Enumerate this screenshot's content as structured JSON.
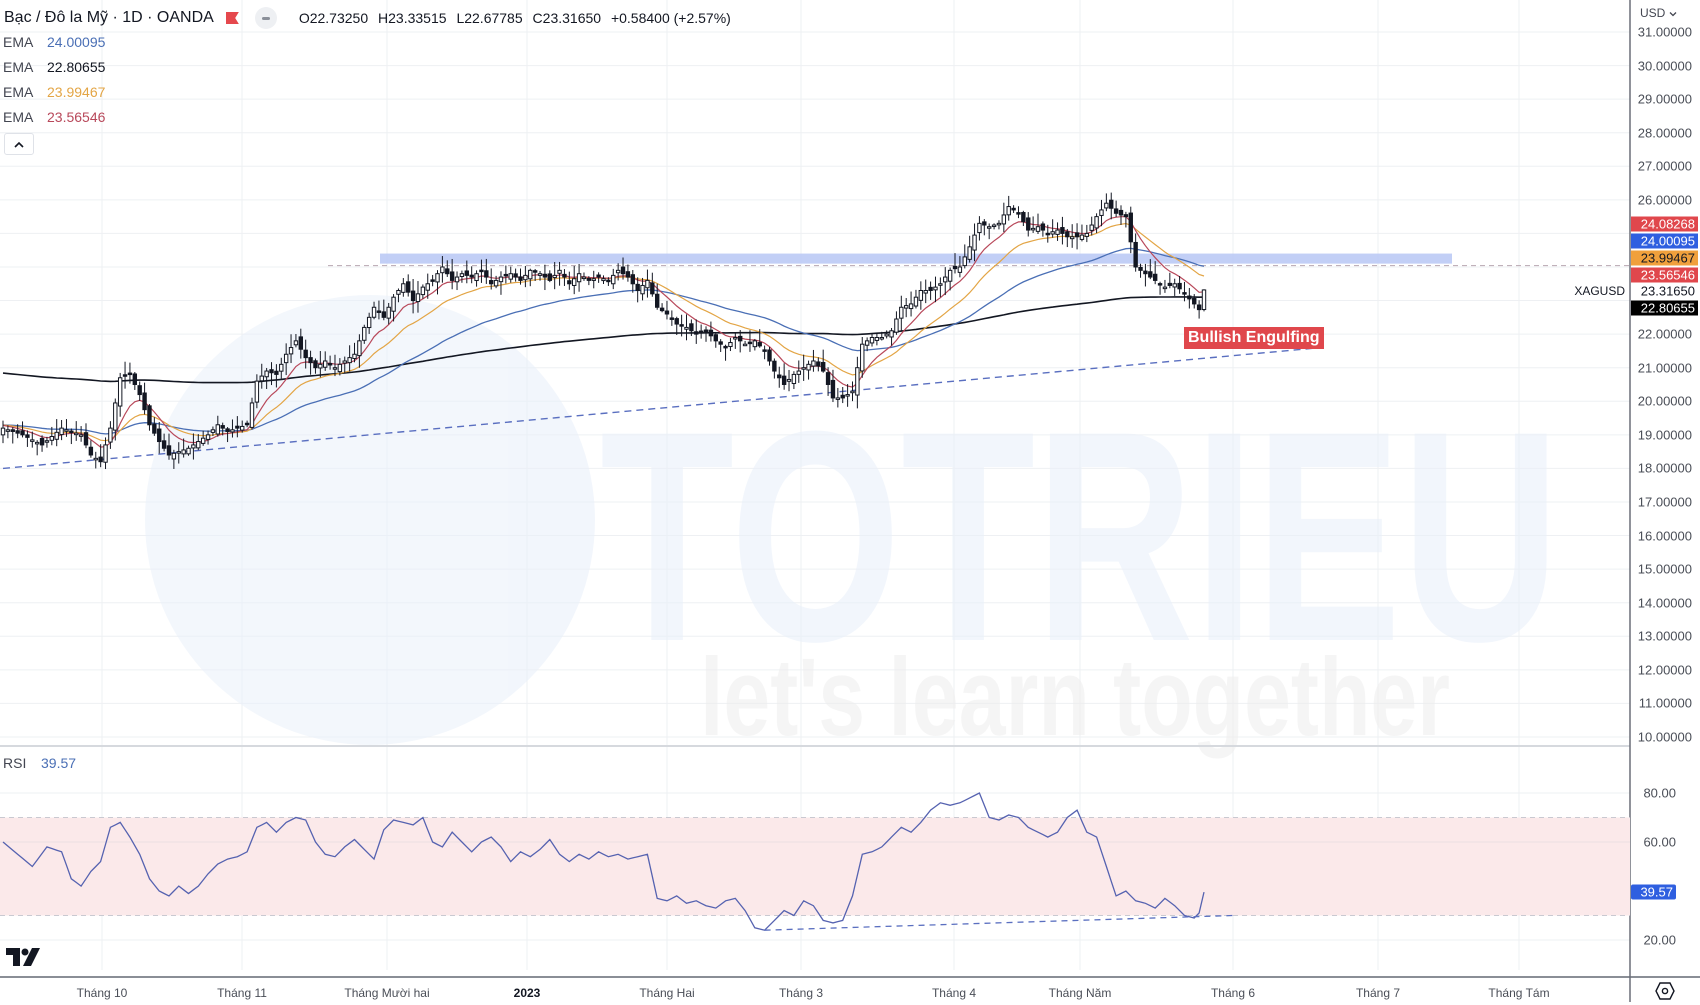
{
  "header": {
    "title": "Bạc / Đô la Mỹ · 1D · OANDA",
    "ohlc": {
      "open_key": "O",
      "open": "22.73250",
      "high_key": "H",
      "high": "23.33515",
      "low_key": "L",
      "low": "22.67785",
      "close_key": "C",
      "close": "23.31650",
      "change": "+0.58400 (+2.57%)"
    }
  },
  "indicators": {
    "emas": [
      {
        "label": "EMA",
        "value": "24.00095",
        "color": "#4a6fb5"
      },
      {
        "label": "EMA",
        "value": "22.80655",
        "color": "#131722"
      },
      {
        "label": "EMA",
        "value": "23.99467",
        "color": "#e3a545"
      },
      {
        "label": "EMA",
        "value": "23.56546",
        "color": "#b8485a"
      }
    ],
    "rsi": {
      "label": "RSI",
      "value": "39.57",
      "color": "#4a6fb5"
    }
  },
  "price_axis": {
    "currency": "USD",
    "symbol": "XAGUSD",
    "ticks": [
      "31.00000",
      "30.00000",
      "29.00000",
      "28.00000",
      "27.00000",
      "26.00000",
      "22.00000",
      "21.00000",
      "20.00000",
      "19.00000",
      "18.00000",
      "17.00000",
      "16.00000",
      "15.00000",
      "14.00000",
      "13.00000",
      "12.00000",
      "11.00000",
      "10.00000"
    ],
    "tags": [
      {
        "value": "24.08268",
        "bg": "#e0474c",
        "fg": "#ffffff"
      },
      {
        "value": "24.00095",
        "bg": "#2f5fe0",
        "fg": "#ffffff"
      },
      {
        "value": "23.99467",
        "bg": "#f0a03c",
        "fg": "#131722"
      },
      {
        "value": "23.56546",
        "bg": "#e0474c",
        "fg": "#ffffff"
      },
      {
        "value": "23.31650",
        "bg": "transparent",
        "fg": "#131722"
      },
      {
        "value": "22.80655",
        "bg": "#000000",
        "fg": "#ffffff"
      }
    ],
    "rsi_ticks": [
      "80.00",
      "60.00",
      "20.00"
    ],
    "rsi_tag": {
      "value": "39.57",
      "bg": "#2f5fe0",
      "fg": "#ffffff"
    }
  },
  "time_axis": {
    "labels": [
      "Tháng 10",
      "Tháng 11",
      "Tháng Mười hai",
      "2023",
      "Tháng Hai",
      "Tháng 3",
      "Tháng 4",
      "Tháng Năm",
      "Tháng 6",
      "Tháng 7",
      "Tháng Tám"
    ],
    "bold_label": "2023"
  },
  "annotations": {
    "pattern_label": "Bullish Engulfing",
    "watermark_main": "TOTRIEU",
    "watermark_sub": "let's learn together"
  },
  "chart_data": [
    {
      "type": "candlestick",
      "title": "Bạc / Đô la Mỹ · 1D · OANDA (XAGUSD)",
      "xlabel": "",
      "ylabel": "USD",
      "ylim": [
        10,
        31
      ],
      "x_ticks": [
        "Tháng 10",
        "Tháng 11",
        "Tháng Mười hai",
        "2023",
        "Tháng Hai",
        "Tháng 3",
        "Tháng 4",
        "Tháng Năm",
        "Tháng 6",
        "Tháng 7",
        "Tháng Tám"
      ],
      "anchors_close": [
        [
          0,
          19.2
        ],
        [
          4,
          19.0
        ],
        [
          8,
          18.7
        ],
        [
          12,
          19.2
        ],
        [
          16,
          19.0
        ],
        [
          18,
          18.4
        ],
        [
          20,
          18.2
        ],
        [
          22,
          19.2
        ],
        [
          24,
          20.7
        ],
        [
          26,
          20.8
        ],
        [
          28,
          20.2
        ],
        [
          30,
          19.3
        ],
        [
          32,
          18.8
        ],
        [
          34,
          18.4
        ],
        [
          36,
          18.5
        ],
        [
          38,
          18.6
        ],
        [
          40,
          18.8
        ],
        [
          42,
          19.0
        ],
        [
          44,
          19.3
        ],
        [
          46,
          19.1
        ],
        [
          48,
          19.2
        ],
        [
          50,
          19.3
        ],
        [
          52,
          20.6
        ],
        [
          54,
          20.9
        ],
        [
          56,
          20.8
        ],
        [
          58,
          21.4
        ],
        [
          60,
          21.8
        ],
        [
          62,
          21.3
        ],
        [
          64,
          21.0
        ],
        [
          66,
          21.2
        ],
        [
          68,
          21.0
        ],
        [
          70,
          21.2
        ],
        [
          72,
          21.4
        ],
        [
          74,
          22.2
        ],
        [
          76,
          22.8
        ],
        [
          78,
          22.5
        ],
        [
          80,
          23.1
        ],
        [
          82,
          23.5
        ],
        [
          84,
          23.0
        ],
        [
          86,
          23.4
        ],
        [
          88,
          23.6
        ],
        [
          90,
          24.0
        ],
        [
          92,
          23.6
        ],
        [
          94,
          23.8
        ],
        [
          96,
          23.7
        ],
        [
          98,
          23.9
        ],
        [
          100,
          23.5
        ],
        [
          102,
          23.7
        ],
        [
          104,
          23.8
        ],
        [
          106,
          23.6
        ],
        [
          108,
          23.9
        ],
        [
          110,
          23.8
        ],
        [
          112,
          23.6
        ],
        [
          114,
          23.9
        ],
        [
          116,
          23.5
        ],
        [
          118,
          23.8
        ],
        [
          120,
          23.6
        ],
        [
          122,
          23.7
        ],
        [
          124,
          23.6
        ],
        [
          126,
          23.9
        ],
        [
          128,
          23.7
        ],
        [
          130,
          23.3
        ],
        [
          132,
          23.6
        ],
        [
          134,
          22.8
        ],
        [
          136,
          22.6
        ],
        [
          138,
          22.3
        ],
        [
          140,
          22.2
        ],
        [
          142,
          22.0
        ],
        [
          144,
          22.1
        ],
        [
          146,
          21.8
        ],
        [
          148,
          21.6
        ],
        [
          150,
          21.9
        ],
        [
          152,
          21.7
        ],
        [
          154,
          21.8
        ],
        [
          156,
          21.5
        ],
        [
          158,
          20.9
        ],
        [
          160,
          20.5
        ],
        [
          162,
          20.8
        ],
        [
          164,
          21.0
        ],
        [
          166,
          21.2
        ],
        [
          168,
          20.9
        ],
        [
          170,
          20.1
        ],
        [
          172,
          20.1
        ],
        [
          174,
          20.3
        ],
        [
          176,
          21.7
        ],
        [
          178,
          21.9
        ],
        [
          180,
          21.9
        ],
        [
          182,
          22.1
        ],
        [
          184,
          22.8
        ],
        [
          186,
          22.9
        ],
        [
          188,
          23.3
        ],
        [
          190,
          23.3
        ],
        [
          192,
          23.5
        ],
        [
          194,
          23.9
        ],
        [
          196,
          24.0
        ],
        [
          198,
          24.6
        ],
        [
          200,
          25.3
        ],
        [
          202,
          25.2
        ],
        [
          204,
          25.3
        ],
        [
          206,
          25.8
        ],
        [
          208,
          25.6
        ],
        [
          210,
          25.1
        ],
        [
          212,
          25.2
        ],
        [
          214,
          25.0
        ],
        [
          216,
          25.1
        ],
        [
          218,
          24.9
        ],
        [
          220,
          24.9
        ],
        [
          222,
          25.0
        ],
        [
          224,
          25.5
        ],
        [
          226,
          25.9
        ],
        [
          228,
          25.6
        ],
        [
          230,
          25.5
        ],
        [
          232,
          24.0
        ],
        [
          234,
          23.8
        ],
        [
          236,
          23.6
        ],
        [
          238,
          23.4
        ],
        [
          240,
          23.5
        ],
        [
          242,
          23.2
        ],
        [
          244,
          22.9
        ],
        [
          245,
          22.73
        ],
        [
          246,
          23.3165
        ]
      ],
      "ema_series": [
        {
          "name": "EMA (blue)",
          "last": 24.00095,
          "color": "#4a6fb5"
        },
        {
          "name": "EMA 200 (black)",
          "last": 22.80655,
          "color": "#131722"
        },
        {
          "name": "EMA (orange)",
          "last": 23.99467,
          "color": "#e3a545"
        },
        {
          "name": "EMA (red)",
          "last": 23.56546,
          "color": "#b8485a"
        }
      ],
      "last_ohlc": {
        "open": 22.7325,
        "high": 23.33515,
        "low": 22.67785,
        "close": 23.3165
      },
      "resistance_zone": [
        24.1,
        24.4
      ],
      "support_trendline": {
        "from": [
          0,
          18.0
        ],
        "to": [
          270,
          21.6
        ]
      },
      "horizontal_dashed_level": 24.1,
      "annotation": "Bullish Engulfing"
    },
    {
      "type": "line",
      "title": "RSI",
      "ylim": [
        10,
        90
      ],
      "y_ticks": [
        20,
        60,
        80
      ],
      "band": [
        30,
        70
      ],
      "last": 39.57,
      "anchors": [
        [
          0,
          60
        ],
        [
          3,
          55
        ],
        [
          6,
          50
        ],
        [
          9,
          58
        ],
        [
          12,
          56
        ],
        [
          14,
          45
        ],
        [
          16,
          42
        ],
        [
          18,
          48
        ],
        [
          20,
          52
        ],
        [
          22,
          66
        ],
        [
          24,
          68
        ],
        [
          26,
          62
        ],
        [
          28,
          55
        ],
        [
          30,
          45
        ],
        [
          32,
          40
        ],
        [
          34,
          38
        ],
        [
          36,
          42
        ],
        [
          38,
          39
        ],
        [
          40,
          42
        ],
        [
          42,
          47
        ],
        [
          44,
          51
        ],
        [
          46,
          53
        ],
        [
          48,
          54
        ],
        [
          50,
          56
        ],
        [
          52,
          66
        ],
        [
          54,
          68
        ],
        [
          56,
          64
        ],
        [
          58,
          68
        ],
        [
          60,
          70
        ],
        [
          62,
          69
        ],
        [
          64,
          60
        ],
        [
          66,
          55
        ],
        [
          68,
          54
        ],
        [
          70,
          58
        ],
        [
          72,
          61
        ],
        [
          74,
          57
        ],
        [
          76,
          53
        ],
        [
          78,
          65
        ],
        [
          80,
          69
        ],
        [
          82,
          68
        ],
        [
          84,
          67
        ],
        [
          86,
          70
        ],
        [
          88,
          60
        ],
        [
          90,
          58
        ],
        [
          92,
          64
        ],
        [
          94,
          60
        ],
        [
          96,
          56
        ],
        [
          98,
          60
        ],
        [
          100,
          62
        ],
        [
          102,
          58
        ],
        [
          104,
          52
        ],
        [
          106,
          56
        ],
        [
          108,
          54
        ],
        [
          110,
          57
        ],
        [
          112,
          61
        ],
        [
          114,
          55
        ],
        [
          116,
          52
        ],
        [
          118,
          55
        ],
        [
          120,
          53
        ],
        [
          122,
          56
        ],
        [
          124,
          54
        ],
        [
          126,
          55
        ],
        [
          128,
          53
        ],
        [
          130,
          54
        ],
        [
          132,
          55
        ],
        [
          134,
          37
        ],
        [
          136,
          36
        ],
        [
          138,
          38
        ],
        [
          140,
          35
        ],
        [
          142,
          36
        ],
        [
          144,
          34
        ],
        [
          146,
          33
        ],
        [
          148,
          36
        ],
        [
          150,
          37
        ],
        [
          152,
          32
        ],
        [
          154,
          25
        ],
        [
          156,
          24
        ],
        [
          158,
          28
        ],
        [
          160,
          32
        ],
        [
          162,
          30
        ],
        [
          164,
          36
        ],
        [
          166,
          34
        ],
        [
          168,
          28
        ],
        [
          170,
          27
        ],
        [
          172,
          28
        ],
        [
          174,
          38
        ],
        [
          176,
          55
        ],
        [
          178,
          56
        ],
        [
          180,
          58
        ],
        [
          182,
          62
        ],
        [
          184,
          66
        ],
        [
          186,
          64
        ],
        [
          188,
          68
        ],
        [
          190,
          73
        ],
        [
          192,
          76
        ],
        [
          194,
          75
        ],
        [
          196,
          76
        ],
        [
          198,
          78
        ],
        [
          200,
          80
        ],
        [
          202,
          70
        ],
        [
          204,
          69
        ],
        [
          206,
          71
        ],
        [
          208,
          70
        ],
        [
          210,
          66
        ],
        [
          212,
          64
        ],
        [
          214,
          62
        ],
        [
          216,
          64
        ],
        [
          218,
          70
        ],
        [
          220,
          73
        ],
        [
          222,
          64
        ],
        [
          224,
          62
        ],
        [
          226,
          50
        ],
        [
          228,
          38
        ],
        [
          230,
          40
        ],
        [
          232,
          36
        ],
        [
          234,
          35
        ],
        [
          236,
          33
        ],
        [
          238,
          37
        ],
        [
          240,
          34
        ],
        [
          242,
          30
        ],
        [
          244,
          29
        ],
        [
          245,
          31
        ],
        [
          246,
          39.57
        ]
      ],
      "divergence_line": {
        "from": [
          156,
          24
        ],
        "to": [
          252,
          30
        ]
      }
    }
  ]
}
